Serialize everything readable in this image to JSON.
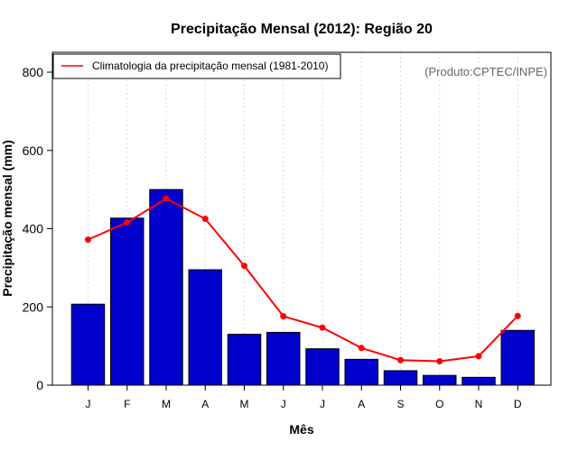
{
  "chart_data": {
    "type": "bar",
    "title": "Precipitação Mensal (2012): Região 20",
    "xlabel": "Mês",
    "ylabel": "Precipitação mensal (mm)",
    "ylim": [
      0,
      850
    ],
    "yticks": [
      0,
      200,
      400,
      600,
      800
    ],
    "grid": "vertical dashed",
    "categories": [
      "J",
      "F",
      "M",
      "A",
      "M",
      "J",
      "J",
      "A",
      "S",
      "O",
      "N",
      "D"
    ],
    "series": [
      {
        "name": "Precipitação mensal (2012)",
        "kind": "bar",
        "color": "#0000CC",
        "values": [
          207,
          427,
          500,
          295,
          130,
          135,
          93,
          66,
          37,
          25,
          20,
          140
        ]
      },
      {
        "name": "Climatologia da precipitação mensal (1981-2010)",
        "kind": "line",
        "color": "#FF0000",
        "values": [
          372,
          416,
          477,
          425,
          305,
          176,
          147,
          95,
          64,
          61,
          74,
          177
        ]
      }
    ],
    "legend": {
      "position": "top-left",
      "entries": [
        "Climatologia da precipitação mensal (1981-2010)"
      ]
    },
    "annotation": "(Produto:CPTEC/INPE)"
  }
}
